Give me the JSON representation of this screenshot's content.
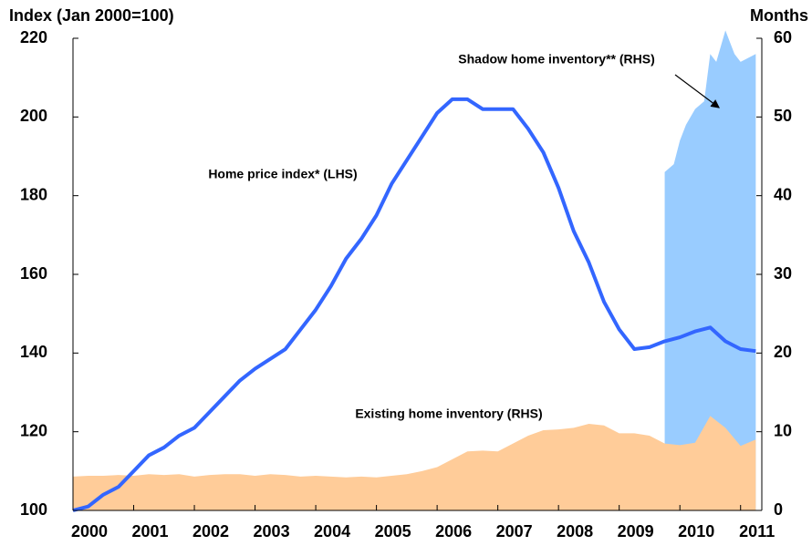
{
  "chart_data": {
    "type": "line",
    "y_label": "Index (Jan 2000=100)",
    "y2_label": "Months",
    "x": [
      2000,
      2000.25,
      2000.5,
      2000.75,
      2001,
      2001.25,
      2001.5,
      2001.75,
      2002,
      2002.25,
      2002.5,
      2002.75,
      2003,
      2003.25,
      2003.5,
      2003.75,
      2004,
      2004.25,
      2004.5,
      2004.75,
      2005,
      2005.25,
      2005.5,
      2005.75,
      2006,
      2006.25,
      2006.5,
      2006.75,
      2007,
      2007.25,
      2007.5,
      2007.75,
      2008,
      2008.25,
      2008.5,
      2008.75,
      2009,
      2009.25,
      2009.5,
      2009.75,
      2010,
      2010.25,
      2010.5,
      2010.75,
      2011,
      2011.25
    ],
    "series": [
      {
        "name": "Shadow home inventory** (RHS)",
        "kind": "area",
        "axis": "y2",
        "color": "#99ccff",
        "x": [
          2009.75,
          2009.9,
          2010,
          2010.1,
          2010.25,
          2010.4,
          2010.5,
          2010.6,
          2010.75,
          2010.9,
          2011,
          2011.25
        ],
        "values": [
          43,
          44,
          47,
          49,
          51,
          52,
          58,
          57,
          61,
          58,
          57,
          58
        ]
      },
      {
        "name": "Existing home inventory (RHS)",
        "kind": "area",
        "axis": "y2",
        "color": "#ffcc99",
        "values": [
          4.3,
          4.4,
          4.4,
          4.5,
          4.4,
          4.6,
          4.5,
          4.6,
          4.3,
          4.5,
          4.6,
          4.6,
          4.4,
          4.6,
          4.5,
          4.3,
          4.4,
          4.3,
          4.2,
          4.3,
          4.2,
          4.4,
          4.6,
          5.0,
          5.5,
          6.5,
          7.5,
          7.6,
          7.5,
          8.5,
          9.5,
          10.2,
          10.3,
          10.5,
          11,
          10.8,
          9.8,
          9.8,
          9.5,
          8.5,
          8.3,
          8.6,
          12,
          10.5,
          8.2,
          9
        ]
      },
      {
        "name": "Home price index* (LHS)",
        "kind": "line",
        "axis": "y",
        "color": "#3366ff",
        "values": [
          100,
          101,
          104,
          106,
          110,
          114,
          116,
          119,
          121,
          125,
          129,
          133,
          136,
          138.5,
          141,
          146,
          151,
          157,
          164,
          169,
          175,
          183,
          189,
          195,
          201,
          204.5,
          204.5,
          202,
          202,
          202,
          197,
          191,
          182,
          171,
          163,
          153,
          146,
          141,
          141.5,
          143,
          144,
          145.5,
          146.5,
          143,
          141,
          140.5
        ]
      }
    ],
    "xlim": [
      2000,
      2011.35
    ],
    "xticks": [
      2000,
      2001,
      2002,
      2003,
      2004,
      2005,
      2006,
      2007,
      2008,
      2009,
      2010,
      2011
    ],
    "ylim": [
      100,
      220
    ],
    "yticks": [
      100,
      120,
      140,
      160,
      180,
      200,
      220
    ],
    "y2lim": [
      0,
      60
    ],
    "y2ticks": [
      0,
      10,
      20,
      30,
      40,
      50,
      60
    ]
  }
}
